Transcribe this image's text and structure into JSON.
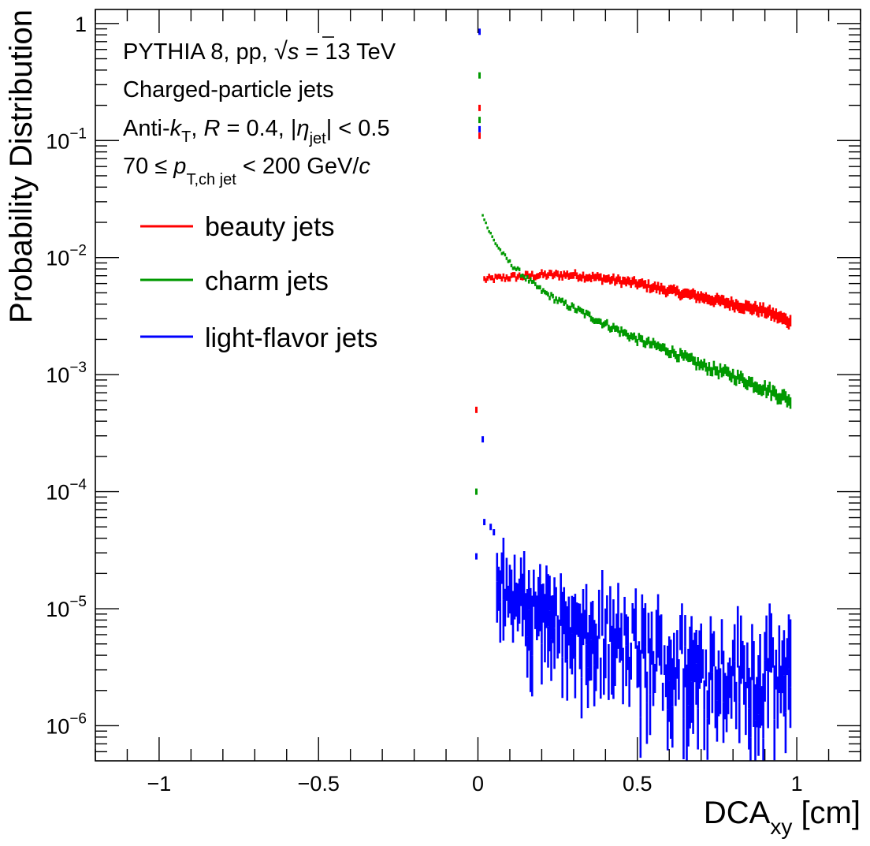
{
  "chart_data": {
    "type": "scatter",
    "title": "",
    "xlabel": "DCA",
    "xlabel_sub": "xy",
    "xlabel_unit": " [cm]",
    "ylabel": "Probability Distribution",
    "xlim": [
      -1.2,
      1.2
    ],
    "ylim_log10": [
      -6.3,
      0.12
    ],
    "yscale": "log",
    "x_ticks": [
      {
        "value": -1,
        "label": "−1"
      },
      {
        "value": -0.5,
        "label": "−0.5"
      },
      {
        "value": 0,
        "label": "0"
      },
      {
        "value": 0.5,
        "label": "0.5"
      },
      {
        "value": 1,
        "label": "1"
      }
    ],
    "y_ticks": [
      {
        "exp": 0,
        "base": "1",
        "sup": ""
      },
      {
        "exp": -1,
        "base": "10",
        "sup": "−1"
      },
      {
        "exp": -2,
        "base": "10",
        "sup": "−2"
      },
      {
        "exp": -3,
        "base": "10",
        "sup": "−3"
      },
      {
        "exp": -4,
        "base": "10",
        "sup": "−4"
      },
      {
        "exp": -5,
        "base": "10",
        "sup": "−5"
      },
      {
        "exp": -6,
        "base": "10",
        "sup": "−6"
      }
    ],
    "annotations": {
      "line1": {
        "a": "PYTHIA 8, pp, ",
        "sqrt": "√",
        "s": "s",
        "b": " = 13 TeV"
      },
      "line2": "Charged-particle jets",
      "line3": {
        "a": "Anti-",
        "k": "k",
        "ksub": "T",
        "b": ", ",
        "R": "R",
        "c": " = 0.4, |",
        "eta": "η",
        "etasub": "jet",
        "d": "| < 0.5"
      },
      "line4": {
        "a": "70 ≤ ",
        "p": "p",
        "psub": "T,ch jet",
        "b": " < 200 GeV/",
        "c": "c"
      }
    },
    "series": [
      {
        "name": "beauty jets",
        "color": "#ff0000",
        "points": [
          [
            -0.005,
            0.0005
          ],
          [
            0.005,
            0.19
          ],
          [
            0.005,
            0.11
          ]
        ],
        "trend": {
          "x": [
            0.02,
            0.1,
            0.2,
            0.3,
            0.4,
            0.5,
            0.6,
            0.7,
            0.8,
            0.9,
            0.98
          ],
          "y": [
            0.0065,
            0.0068,
            0.0071,
            0.0071,
            0.0066,
            0.006,
            0.0052,
            0.0046,
            0.004,
            0.0035,
            0.0028
          ]
        }
      },
      {
        "name": "charm jets",
        "color": "#009900",
        "points": [
          [
            -0.005,
            0.0001
          ],
          [
            0.005,
            0.36
          ],
          [
            0.005,
            0.15
          ]
        ],
        "trend": {
          "x": [
            0.015,
            0.03,
            0.05,
            0.08,
            0.1,
            0.15,
            0.2,
            0.25,
            0.3,
            0.4,
            0.5,
            0.6,
            0.7,
            0.8,
            0.9,
            0.98
          ],
          "y": [
            0.024,
            0.018,
            0.014,
            0.0105,
            0.009,
            0.0067,
            0.0052,
            0.0043,
            0.0037,
            0.0027,
            0.002,
            0.0016,
            0.0012,
            0.00098,
            0.00076,
            0.0006
          ]
        }
      },
      {
        "name": "light-flavor jets",
        "color": "#0000ff",
        "points": [
          [
            0.005,
            0.85
          ],
          [
            0.005,
            0.125
          ],
          [
            -0.005,
            2.8e-05
          ],
          [
            0.015,
            0.00028
          ],
          [
            0.02,
            5.5e-05
          ],
          [
            0.04,
            5e-05
          ],
          [
            0.05,
            4.5e-05
          ]
        ],
        "trend": {
          "x": [
            0.06,
            0.1,
            0.15,
            0.2,
            0.25,
            0.3,
            0.4,
            0.5,
            0.6,
            0.7,
            0.8,
            0.9,
            0.98
          ],
          "y": [
            1.8e-05,
            1.3e-05,
            1.1e-05,
            1.05e-05,
            8.5e-06,
            6.5e-06,
            5.2e-06,
            4.2e-06,
            3.6e-06,
            3.3e-06,
            3e-06,
            2.8e-06,
            2.6e-06
          ]
        }
      }
    ],
    "legend": {
      "position": "upper-left"
    }
  }
}
